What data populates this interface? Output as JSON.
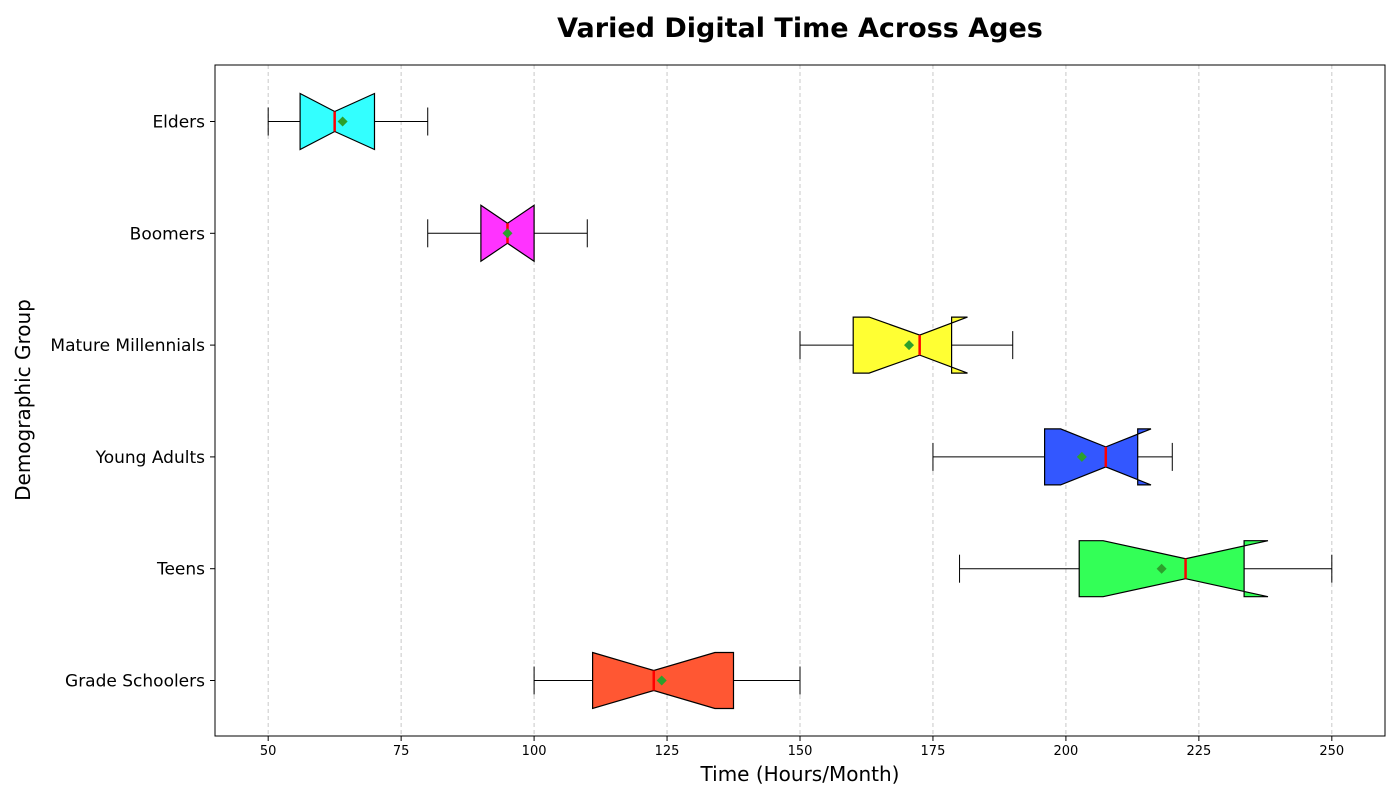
{
  "chart_data": {
    "type": "boxplot",
    "orientation": "horizontal",
    "notched": true,
    "title": "Varied Digital Time Across Ages",
    "xlabel": "Time (Hours/Month)",
    "ylabel": "Demographic Group",
    "xlim": [
      40,
      260
    ],
    "xticks": [
      50,
      75,
      100,
      125,
      150,
      175,
      200,
      225,
      250
    ],
    "grid": "vertical-dashed",
    "categories": [
      "Grade Schoolers",
      "Teens",
      "Young Adults",
      "Mature Millennials",
      "Boomers",
      "Elders"
    ],
    "boxes": [
      {
        "category": "Grade Schoolers",
        "whisker_low": 100,
        "q1": 111,
        "median": 122.5,
        "q3": 137.5,
        "whisker_high": 150,
        "mean": 124,
        "notch_low": 111,
        "notch_high": 134,
        "color": "#ff5733"
      },
      {
        "category": "Teens",
        "whisker_low": 180,
        "q1": 202.5,
        "median": 222.5,
        "q3": 233.5,
        "whisker_high": 250,
        "mean": 218,
        "notch_low": 207,
        "notch_high": 238,
        "color": "#33ff57"
      },
      {
        "category": "Young Adults",
        "whisker_low": 175,
        "q1": 196,
        "median": 207.5,
        "q3": 213.5,
        "whisker_high": 220,
        "mean": 203,
        "notch_low": 199,
        "notch_high": 216,
        "color": "#3357ff"
      },
      {
        "category": "Mature Millennials",
        "whisker_low": 150,
        "q1": 160,
        "median": 172.5,
        "q3": 178.5,
        "whisker_high": 190,
        "mean": 170.5,
        "notch_low": 163,
        "notch_high": 181.5,
        "color": "#ffff33"
      },
      {
        "category": "Boomers",
        "whisker_low": 80,
        "q1": 90,
        "median": 95,
        "q3": 100,
        "whisker_high": 110,
        "mean": 95,
        "notch_low": 90,
        "notch_high": 100,
        "color": "#ff33ff"
      },
      {
        "category": "Elders",
        "whisker_low": 50,
        "q1": 56,
        "median": 62.5,
        "q3": 70,
        "whisker_high": 80,
        "mean": 64,
        "notch_low": 56,
        "notch_high": 70,
        "color": "#33ffff"
      }
    ],
    "median_color": "#ff0000",
    "mean_marker_color": "#2ca02c"
  }
}
